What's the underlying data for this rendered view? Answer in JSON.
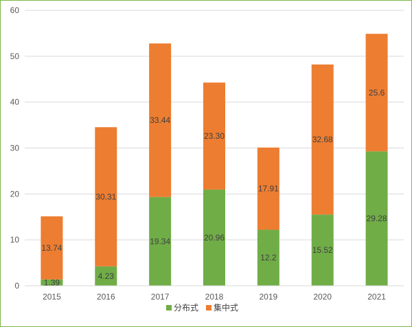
{
  "chart_data": {
    "type": "bar",
    "stacked": true,
    "categories": [
      "2015",
      "2016",
      "2017",
      "2018",
      "2019",
      "2020",
      "2021"
    ],
    "series": [
      {
        "name": "分布式",
        "color": "#70ad47",
        "values": [
          1.39,
          4.23,
          19.34,
          20.96,
          12.2,
          15.52,
          29.28
        ],
        "labels": [
          "1.39",
          "4.23",
          "19.34",
          "20.96",
          "12.2",
          "15.52",
          "29.28"
        ]
      },
      {
        "name": "集中式",
        "color": "#ed7d31",
        "values": [
          13.74,
          30.31,
          33.44,
          23.3,
          17.91,
          32.68,
          25.6
        ],
        "labels": [
          "13.74",
          "30.31",
          "33.44",
          "23.30",
          "17.91",
          "32.68",
          "25.6"
        ]
      }
    ],
    "title": "",
    "xlabel": "",
    "ylabel": "",
    "ylim": [
      0,
      60
    ],
    "yticks": [
      0,
      10,
      20,
      30,
      40,
      50,
      60
    ],
    "grid": true,
    "legend": "bottom-center"
  }
}
